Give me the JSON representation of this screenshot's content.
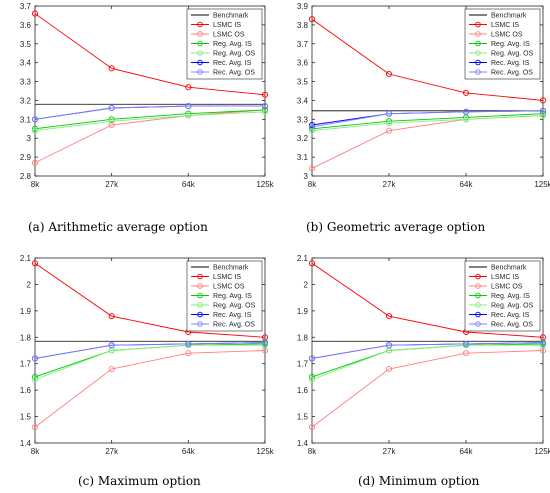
{
  "categories": [
    "8k",
    "27k",
    "64k",
    "125k"
  ],
  "legend_labels": [
    "Benchmark",
    "LSMC IS",
    "LSMC OS",
    "Reg. Avg. IS",
    "Reg. Avg. OS",
    "Rec. Avg. IS",
    "Rec. Avg. OS"
  ],
  "colors": {
    "Benchmark": "#000000",
    "LSMC IS": "#ff0000",
    "LSMC OS": "#ff8080",
    "Reg. Avg. IS": "#00cc00",
    "Reg. Avg. OS": "#80ee80",
    "Rec. Avg. IS": "#0000ff",
    "Rec. Avg. OS": "#8080ff"
  },
  "chart_data": [
    {
      "type": "line",
      "caption": "(a) Arithmetic average option",
      "categories": [
        "8k",
        "27k",
        "64k",
        "125k"
      ],
      "ylim": [
        2.8,
        3.7
      ],
      "yticks": [
        "2.8",
        "2.9",
        "3",
        "3.1",
        "3.2",
        "3.3",
        "3.4",
        "3.5",
        "3.6",
        "3.7"
      ],
      "benchmark": 3.18,
      "series": [
        {
          "name": "LSMC IS",
          "values": [
            3.66,
            3.37,
            3.27,
            3.23
          ]
        },
        {
          "name": "LSMC OS",
          "values": [
            2.87,
            3.07,
            3.12,
            3.15
          ]
        },
        {
          "name": "Reg. Avg. IS",
          "values": [
            3.05,
            3.1,
            3.13,
            3.15
          ]
        },
        {
          "name": "Reg. Avg. OS",
          "values": [
            3.04,
            3.09,
            3.12,
            3.14
          ]
        },
        {
          "name": "Rec. Avg. IS",
          "values": [
            3.1,
            3.16,
            3.17,
            3.17
          ]
        },
        {
          "name": "Rec. Avg. OS",
          "values": [
            3.1,
            3.16,
            3.17,
            3.17
          ]
        }
      ]
    },
    {
      "type": "line",
      "caption": "(b) Geometric average option",
      "categories": [
        "8k",
        "27k",
        "64k",
        "125k"
      ],
      "ylim": [
        3.0,
        3.9
      ],
      "yticks": [
        "3",
        "3.1",
        "3.2",
        "3.3",
        "3.4",
        "3.5",
        "3.6",
        "3.7",
        "3.8",
        "3.9"
      ],
      "benchmark": 3.345,
      "series": [
        {
          "name": "LSMC IS",
          "values": [
            3.83,
            3.54,
            3.44,
            3.4
          ]
        },
        {
          "name": "LSMC OS",
          "values": [
            3.04,
            3.24,
            3.3,
            3.32
          ]
        },
        {
          "name": "Reg. Avg. IS",
          "values": [
            3.25,
            3.29,
            3.31,
            3.33
          ]
        },
        {
          "name": "Reg. Avg. OS",
          "values": [
            3.24,
            3.28,
            3.3,
            3.32
          ]
        },
        {
          "name": "Rec. Avg. IS",
          "values": [
            3.27,
            3.33,
            3.34,
            3.345
          ]
        },
        {
          "name": "Rec. Avg. OS",
          "values": [
            3.26,
            3.33,
            3.34,
            3.345
          ]
        }
      ]
    },
    {
      "type": "line",
      "caption": "(c) Maximum option",
      "categories": [
        "8k",
        "27k",
        "64k",
        "125k"
      ],
      "ylim": [
        1.4,
        2.1
      ],
      "yticks": [
        "1.4",
        "1.5",
        "1.6",
        "1.7",
        "1.8",
        "1.9",
        "2",
        "2.1"
      ],
      "benchmark": 1.785,
      "series": [
        {
          "name": "LSMC IS",
          "values": [
            2.08,
            1.88,
            1.82,
            1.8
          ]
        },
        {
          "name": "LSMC OS",
          "values": [
            1.46,
            1.68,
            1.74,
            1.75
          ]
        },
        {
          "name": "Reg. Avg. IS",
          "values": [
            1.65,
            1.75,
            1.77,
            1.775
          ]
        },
        {
          "name": "Reg. Avg. OS",
          "values": [
            1.64,
            1.75,
            1.77,
            1.77
          ]
        },
        {
          "name": "Rec. Avg. IS",
          "values": [
            1.72,
            1.77,
            1.775,
            1.78
          ]
        },
        {
          "name": "Rec. Avg. OS",
          "values": [
            1.72,
            1.77,
            1.775,
            1.78
          ]
        }
      ]
    },
    {
      "type": "line",
      "caption": "(d) Minimum option",
      "categories": [
        "8k",
        "27k",
        "64k",
        "125k"
      ],
      "ylim": [
        1.4,
        2.1
      ],
      "yticks": [
        "1.4",
        "1.5",
        "1.6",
        "1.7",
        "1.8",
        "1.9",
        "2",
        "2.1"
      ],
      "benchmark": 1.785,
      "series": [
        {
          "name": "LSMC IS",
          "values": [
            2.08,
            1.88,
            1.82,
            1.8
          ]
        },
        {
          "name": "LSMC OS",
          "values": [
            1.46,
            1.68,
            1.74,
            1.75
          ]
        },
        {
          "name": "Reg. Avg. IS",
          "values": [
            1.65,
            1.75,
            1.77,
            1.775
          ]
        },
        {
          "name": "Reg. Avg. OS",
          "values": [
            1.64,
            1.75,
            1.77,
            1.77
          ]
        },
        {
          "name": "Rec. Avg. IS",
          "values": [
            1.72,
            1.77,
            1.775,
            1.78
          ]
        },
        {
          "name": "Rec. Avg. OS",
          "values": [
            1.72,
            1.77,
            1.775,
            1.78
          ]
        }
      ]
    }
  ]
}
